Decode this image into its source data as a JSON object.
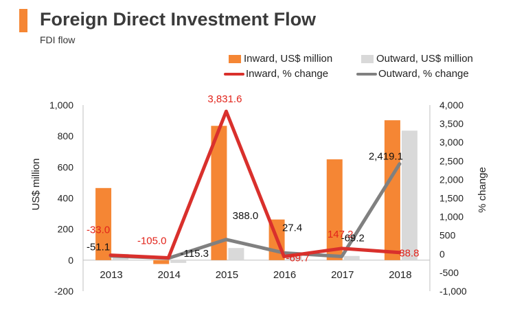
{
  "header": {
    "title": "Foreign Direct Investment Flow",
    "subtitle": "FDI flow"
  },
  "colors": {
    "accent": "#f58634",
    "inward_bar": "#f58634",
    "outward_bar": "#d9d9d9",
    "inward_line": "#d9302c",
    "outward_line": "#808080",
    "inward_label": "#e2231a",
    "outward_label": "#111111"
  },
  "legend": {
    "inward_bar": "Inward, US$ million",
    "outward_bar": "Outward, US$ million",
    "inward_line": "Inward, % change",
    "outward_line": "Outward, % change"
  },
  "chart_data": {
    "type": "bar",
    "title": "Foreign Direct Investment Flow",
    "subtitle": "FDI flow",
    "categories": [
      "2013",
      "2014",
      "2015",
      "2016",
      "2017",
      "2018"
    ],
    "ylabel": "US$ million",
    "y2label": "% change",
    "ylim": [
      -200,
      1000
    ],
    "y2lim": [
      -1000,
      4000
    ],
    "y_ticks": [
      -200,
      0,
      200,
      400,
      600,
      800,
      1000
    ],
    "y_tick_labels": [
      "-200",
      "0",
      "200",
      "400",
      "600",
      "800",
      "1,000"
    ],
    "y2_ticks": [
      -1000,
      -500,
      0,
      500,
      1000,
      1500,
      2000,
      2500,
      3000,
      3500,
      4000
    ],
    "y2_tick_labels": [
      "-1,000",
      "-500",
      "0",
      "500",
      "1,000",
      "1,500",
      "2,000",
      "2,500",
      "3,000",
      "3,500",
      "4,000"
    ],
    "grid": false,
    "legend_position": "top-right",
    "series": [
      {
        "name": "Inward, US$ million",
        "type": "bar",
        "axis": "left",
        "values": [
          465,
          -25,
          866,
          262,
          650,
          902
        ]
      },
      {
        "name": "Outward, US$ million",
        "type": "bar",
        "axis": "left",
        "values": [
          40,
          -18,
          78,
          40,
          27,
          835
        ]
      },
      {
        "name": "Inward, % change",
        "type": "line",
        "axis": "right",
        "values": [
          -33.0,
          -105.0,
          3831.6,
          -69.7,
          147.2,
          38.8
        ],
        "labels": [
          "-33.0",
          "-105.0",
          "3,831.6",
          "-69.7",
          "147.2",
          "38.8"
        ]
      },
      {
        "name": "Outward, % change",
        "type": "line",
        "axis": "right",
        "values": [
          -51.1,
          -115.3,
          388.0,
          27.4,
          -69.2,
          2419.1
        ],
        "labels": [
          "-51.1",
          "-115.3",
          "388.0",
          "27.4",
          "-69.2",
          "2,419.1"
        ]
      }
    ]
  }
}
